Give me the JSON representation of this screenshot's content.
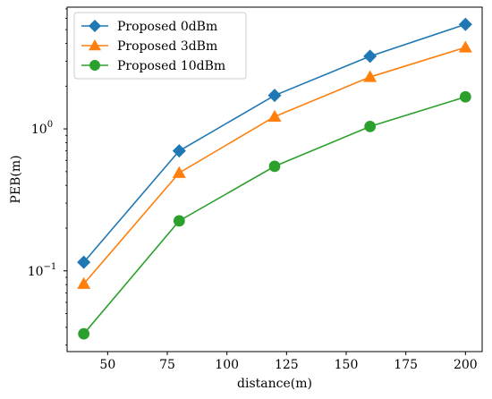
{
  "chart_data": {
    "type": "line",
    "xlabel": "distance(m)",
    "ylabel": "PEB(m)",
    "xlim": [
      33,
      207
    ],
    "ylim": [
      0.027,
      7.2
    ],
    "yscale": "log",
    "grid": false,
    "legend_position": "top-left",
    "x": [
      40,
      80,
      120,
      160,
      200
    ],
    "x_ticks": [
      {
        "value": 50,
        "label": "50"
      },
      {
        "value": 75,
        "label": "75"
      },
      {
        "value": 100,
        "label": "100"
      },
      {
        "value": 125,
        "label": "125"
      },
      {
        "value": 150,
        "label": "150"
      },
      {
        "value": 175,
        "label": "175"
      },
      {
        "value": 200,
        "label": "200"
      }
    ],
    "y_ticks": [
      {
        "value": 0.1,
        "base": "10",
        "exp": "−1"
      },
      {
        "value": 1,
        "base": "10",
        "exp": "0"
      }
    ],
    "series": [
      {
        "name": "Proposed 0dBm",
        "color": "#1f77b4",
        "marker": "diamond",
        "values": [
          0.115,
          0.7,
          1.72,
          3.25,
          5.45
        ]
      },
      {
        "name": "Proposed 3dBm",
        "color": "#ff7f0e",
        "marker": "triangle",
        "values": [
          0.081,
          0.49,
          1.22,
          2.32,
          3.75
        ]
      },
      {
        "name": "Proposed 10dBm",
        "color": "#2ca02c",
        "marker": "circle",
        "values": [
          0.036,
          0.225,
          0.545,
          1.04,
          1.68
        ]
      }
    ]
  }
}
